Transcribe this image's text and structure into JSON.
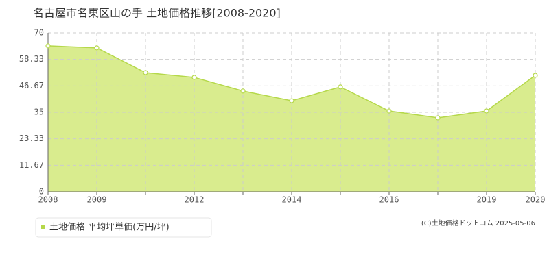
{
  "chart_data": {
    "type": "area",
    "title": "名古屋市名東区山の手 土地価格推移[2008-2020]",
    "categories": [
      "2008",
      "2009",
      null,
      "2012",
      null,
      "2014",
      null,
      "2016",
      null,
      "2019",
      "2020"
    ],
    "series": [
      {
        "name": "土地価格 平均坪単価(万円/坪)",
        "color": "#b5d84a",
        "fill": "#d9ec8e",
        "values": [
          64.3,
          63.4,
          52.5,
          50.4,
          44.4,
          40.1,
          46.2,
          35.6,
          32.6,
          35.6,
          51.3
        ]
      }
    ],
    "ylim": [
      0,
      70
    ],
    "yticks": [
      0,
      11.67,
      23.33,
      35,
      46.67,
      58.33,
      70
    ],
    "grid": true,
    "legend": "bottom-left",
    "credit": "(C)土地価格ドットコム 2025-05-06"
  }
}
